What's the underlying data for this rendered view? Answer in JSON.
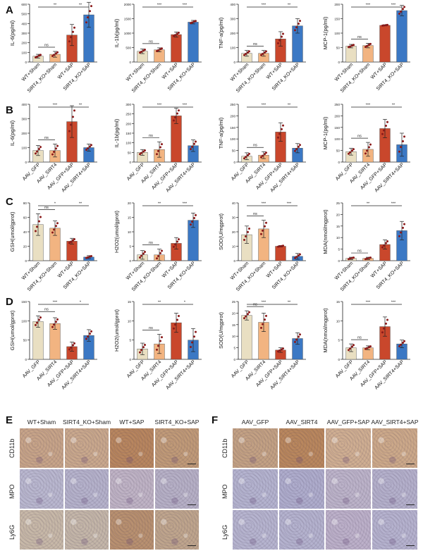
{
  "panels": {
    "A": "A",
    "B": "B",
    "C": "C",
    "D": "D",
    "E": "E",
    "F": "F"
  },
  "colors": {
    "group1": "#e9dfc2",
    "group2": "#f2b481",
    "group3": "#c9472c",
    "group4": "#3b78c4",
    "dot": "#8b1a1a"
  },
  "chart_data": [
    {
      "panel": "A",
      "type": "bar",
      "ylabel": "IL-6(pg/ml)",
      "yticks": [
        0,
        100,
        200,
        300,
        400,
        500,
        600
      ],
      "ylim": [
        0,
        600
      ],
      "categories": [
        "WT+Sham",
        "SIRT4_KO+Sham",
        "WT+SAP",
        "SIRT4_KO+SAP"
      ],
      "values": [
        60,
        80,
        280,
        490
      ],
      "errors": [
        20,
        30,
        110,
        130
      ],
      "sig": [
        {
          "from": 0,
          "to": 1,
          "label": "ns"
        },
        {
          "from": 0,
          "to": 2,
          "label": "**"
        },
        {
          "from": 2,
          "to": 3,
          "label": "**"
        }
      ]
    },
    {
      "panel": "A",
      "type": "bar",
      "ylabel": "IL-1b(pg/ml)",
      "yticks": [
        0,
        500,
        1000,
        1500,
        2000
      ],
      "ylim": [
        0,
        2000
      ],
      "categories": [
        "WT+Sham",
        "SIRT4_KO+Sham",
        "WT+SAP",
        "SIRT4_KO+SAP"
      ],
      "values": [
        370,
        420,
        950,
        1380
      ],
      "errors": [
        80,
        70,
        90,
        60
      ],
      "sig": [
        {
          "from": 0,
          "to": 1,
          "label": "ns"
        },
        {
          "from": 0,
          "to": 2,
          "label": "***"
        },
        {
          "from": 2,
          "to": 3,
          "label": "***"
        }
      ]
    },
    {
      "panel": "A",
      "type": "bar",
      "ylabel": "TNF-a(pg/ml)",
      "yticks": [
        0,
        100,
        200,
        300,
        400
      ],
      "ylim": [
        0,
        400
      ],
      "categories": [
        "WT+Sham",
        "SIRT4_KO+Sham",
        "WT+SAP",
        "SIRT4_KO+SAP"
      ],
      "values": [
        60,
        60,
        160,
        250
      ],
      "errors": [
        20,
        20,
        50,
        50
      ],
      "sig": [
        {
          "from": 0,
          "to": 1,
          "label": "ns"
        },
        {
          "from": 0,
          "to": 2,
          "label": "***"
        },
        {
          "from": 2,
          "to": 3,
          "label": "**"
        }
      ]
    },
    {
      "panel": "A",
      "type": "bar",
      "ylabel": "MCP-1(pg/ml)",
      "yticks": [
        0,
        50,
        100,
        150,
        200
      ],
      "ylim": [
        0,
        200
      ],
      "categories": [
        "WT+Sham",
        "SIRT4_KO+Sham",
        "WT+SAP",
        "SIRT4_KO+SAP"
      ],
      "values": [
        55,
        57,
        127,
        178
      ],
      "errors": [
        6,
        8,
        2,
        18
      ],
      "sig": [
        {
          "from": 0,
          "to": 1,
          "label": "ns"
        },
        {
          "from": 0,
          "to": 2,
          "label": "***"
        },
        {
          "from": 2,
          "to": 3,
          "label": "***"
        }
      ]
    },
    {
      "panel": "B",
      "type": "bar",
      "ylabel": "IL-6(pg/ml)",
      "yticks": [
        0,
        100,
        200,
        300,
        400
      ],
      "ylim": [
        0,
        400
      ],
      "categories": [
        "AAV_GFP",
        "AAV_SIRT4",
        "AAV_GFP+SAP",
        "AAV_SIRT4+SAP"
      ],
      "values": [
        80,
        80,
        280,
        100
      ],
      "errors": [
        35,
        45,
        110,
        25
      ],
      "sig": [
        {
          "from": 0,
          "to": 1,
          "label": "ns"
        },
        {
          "from": 0,
          "to": 2,
          "label": "***"
        },
        {
          "from": 2,
          "to": 3,
          "label": "**"
        }
      ]
    },
    {
      "panel": "B",
      "type": "bar",
      "ylabel": "IL-1b(pg/ml)",
      "yticks": [
        0,
        50,
        100,
        150,
        200,
        250,
        300
      ],
      "ylim": [
        0,
        300
      ],
      "categories": [
        "AAV_GFP",
        "AAV_SIRT4",
        "AAV_GFP+SAP",
        "AAV_SIRT4+SAP"
      ],
      "values": [
        50,
        65,
        240,
        85
      ],
      "errors": [
        15,
        40,
        40,
        30
      ],
      "sig": [
        {
          "from": 0,
          "to": 1,
          "label": "ns"
        },
        {
          "from": 0,
          "to": 2,
          "label": "***"
        },
        {
          "from": 2,
          "to": 3,
          "label": "***"
        }
      ]
    },
    {
      "panel": "B",
      "type": "bar",
      "ylabel": "TNF-a(pg/ml)",
      "yticks": [
        0,
        50,
        100,
        150,
        200,
        250
      ],
      "ylim": [
        0,
        250
      ],
      "categories": [
        "AAV_GFP",
        "AAV_SIRT4",
        "AAV_GFP+SAP",
        "AAV_SIRT4+SAP"
      ],
      "values": [
        25,
        30,
        130,
        60
      ],
      "errors": [
        15,
        15,
        40,
        20
      ],
      "sig": [
        {
          "from": 0,
          "to": 1,
          "label": "ns"
        },
        {
          "from": 0,
          "to": 2,
          "label": "***"
        },
        {
          "from": 2,
          "to": 3,
          "label": "**"
        }
      ]
    },
    {
      "panel": "B",
      "type": "bar",
      "ylabel": "MCP-1(pg/ml)",
      "yticks": [
        0,
        50,
        100,
        150,
        200,
        250
      ],
      "ylim": [
        0,
        250
      ],
      "categories": [
        "AAV_GFP",
        "AAV_SIRT4",
        "AAV_GFP+SAP",
        "AAV_SIRT4+SAP"
      ],
      "values": [
        45,
        55,
        145,
        75
      ],
      "errors": [
        15,
        30,
        40,
        50
      ],
      "sig": [
        {
          "from": 0,
          "to": 1,
          "label": "ns"
        },
        {
          "from": 0,
          "to": 2,
          "label": "***"
        },
        {
          "from": 2,
          "to": 3,
          "label": "**"
        }
      ]
    },
    {
      "panel": "C",
      "type": "bar",
      "ylabel": "GSH(umol/gprot)",
      "yticks": [
        0,
        20,
        40,
        60,
        80
      ],
      "ylim": [
        0,
        80
      ],
      "categories": [
        "WT+Sham",
        "SIRT4_KO+Sham",
        "WT+SAP",
        "SIRT4_KO+SAP"
      ],
      "values": [
        50,
        45,
        27,
        5
      ],
      "errors": [
        15,
        10,
        4,
        2
      ],
      "sig": [
        {
          "from": 0,
          "to": 1,
          "label": "ns"
        },
        {
          "from": 0,
          "to": 2,
          "label": "*"
        },
        {
          "from": 2,
          "to": 3,
          "label": "**"
        }
      ]
    },
    {
      "panel": "C",
      "type": "bar",
      "ylabel": "H2O2(umol/gprot)",
      "yticks": [
        0,
        5,
        10,
        15,
        20
      ],
      "ylim": [
        0,
        20
      ],
      "categories": [
        "WT+Sham",
        "SIRT4_KO+Sham",
        "WT+SAP",
        "SIRT4_KO+SAP"
      ],
      "values": [
        2,
        2,
        6,
        14
      ],
      "errors": [
        1.5,
        2,
        2,
        2.5
      ],
      "sig": [
        {
          "from": 0,
          "to": 1,
          "label": "ns"
        },
        {
          "from": 0,
          "to": 2,
          "label": "**"
        },
        {
          "from": 2,
          "to": 3,
          "label": "***"
        }
      ]
    },
    {
      "panel": "C",
      "type": "bar",
      "ylabel": "SOD(U/mgprot)",
      "yticks": [
        0,
        10,
        20,
        30,
        40
      ],
      "ylim": [
        0,
        40
      ],
      "categories": [
        "WT+Sham",
        "SIRT4_KO+Sham",
        "WT+SAP",
        "SIRT4_KO+SAP"
      ],
      "values": [
        18,
        22,
        10,
        3
      ],
      "errors": [
        6,
        6,
        0.5,
        2
      ],
      "sig": [
        {
          "from": 0,
          "to": 1,
          "label": "ns"
        },
        {
          "from": 0,
          "to": 2,
          "label": "***"
        },
        {
          "from": 2,
          "to": 3,
          "label": "***"
        }
      ]
    },
    {
      "panel": "C",
      "type": "bar",
      "ylabel": "MDA(nmol/mgprot)",
      "yticks": [
        0,
        5,
        10,
        15,
        20,
        25
      ],
      "ylim": [
        0,
        25
      ],
      "categories": [
        "WT+Sham",
        "SIRT4_KO+Sham",
        "WT+SAP",
        "SIRT4_KO+SAP"
      ],
      "values": [
        1,
        1,
        7,
        13
      ],
      "errors": [
        0.5,
        0.5,
        2,
        4
      ],
      "sig": [
        {
          "from": 0,
          "to": 1,
          "label": "ns"
        },
        {
          "from": 0,
          "to": 2,
          "label": "**"
        },
        {
          "from": 2,
          "to": 3,
          "label": "***"
        }
      ]
    },
    {
      "panel": "D",
      "type": "bar",
      "ylabel": "GSH(umol/gprot)",
      "yticks": [
        0,
        50,
        100,
        150
      ],
      "ylim": [
        0,
        150
      ],
      "categories": [
        "AAV_GFP",
        "AAV_SIRT4",
        "AAV_GFP+SAP",
        "AAV_SIRT4+SAP"
      ],
      "values": [
        98,
        93,
        33,
        62
      ],
      "errors": [
        15,
        15,
        12,
        15
      ],
      "sig": [
        {
          "from": 0,
          "to": 1,
          "label": "ns"
        },
        {
          "from": 0,
          "to": 2,
          "label": "***"
        },
        {
          "from": 2,
          "to": 3,
          "label": "*"
        }
      ]
    },
    {
      "panel": "D",
      "type": "bar",
      "ylabel": "H2O2(umol/gprot)",
      "yticks": [
        0,
        5,
        10,
        15
      ],
      "ylim": [
        0,
        15
      ],
      "categories": [
        "AAV_GFP",
        "AAV_SIRT4",
        "AAV_GFP+SAP",
        "AAV_SIRT4+SAP"
      ],
      "values": [
        2.7,
        4,
        9.5,
        5
      ],
      "errors": [
        1.5,
        2.5,
        2.5,
        3
      ],
      "sig": [
        {
          "from": 0,
          "to": 1,
          "label": "ns"
        },
        {
          "from": 0,
          "to": 2,
          "label": "**"
        },
        {
          "from": 2,
          "to": 3,
          "label": "*"
        }
      ]
    },
    {
      "panel": "D",
      "type": "bar",
      "ylabel": "SOD(U/mgprot)",
      "yticks": [
        0,
        5,
        10,
        15,
        20,
        25
      ],
      "ylim": [
        0,
        25
      ],
      "categories": [
        "AAV_GFP",
        "AAV_SIRT4",
        "AAV_GFP+SAP",
        "AAV_SIRT4+SAP"
      ],
      "values": [
        19,
        16,
        4,
        9
      ],
      "errors": [
        2,
        4,
        1,
        2.5
      ],
      "sig": [
        {
          "from": 0,
          "to": 1,
          "label": "ns"
        },
        {
          "from": 0,
          "to": 2,
          "label": "***"
        },
        {
          "from": 2,
          "to": 3,
          "label": "**"
        }
      ]
    },
    {
      "panel": "D",
      "type": "bar",
      "ylabel": "MDA(nmol/mgprot)",
      "yticks": [
        0,
        5,
        10,
        15
      ],
      "ylim": [
        0,
        15
      ],
      "categories": [
        "AAV_GFP",
        "AAV_SIRT4",
        "AAV_GFP+SAP",
        "AAV_SIRT4+SAP"
      ],
      "values": [
        3,
        3,
        8.5,
        4
      ],
      "errors": [
        1,
        0.5,
        2.5,
        1
      ],
      "sig": [
        {
          "from": 0,
          "to": 1,
          "label": "ns"
        },
        {
          "from": 0,
          "to": 2,
          "label": "***"
        },
        {
          "from": 2,
          "to": 3,
          "label": "***"
        }
      ]
    }
  ],
  "histology": {
    "E": {
      "columns": [
        "WT+Sham",
        "SIRT4_KO+Sham",
        "WT+SAP",
        "SIRT4_KO+SAP"
      ],
      "rows": [
        "CD11b",
        "MPO",
        "Ly6G"
      ]
    },
    "F": {
      "columns": [
        "AAV_GFP",
        "AAV_SIRT4",
        "AAV_GFP+SAP",
        "AAV_SIRT4+SAP"
      ],
      "rows": [
        "CD11b",
        "MPO",
        "Ly6G"
      ]
    }
  },
  "tissue_tones": {
    "E": [
      [
        "#c7a489",
        "#c9a88d",
        "#b8865f",
        "#c09a78"
      ],
      [
        "#b9b7cf",
        "#b5b2cb",
        "#bfb3c5",
        "#b6b0c6"
      ],
      [
        "#c7b8a8",
        "#c4b6a9",
        "#b89070",
        "#bfa58d"
      ]
    ],
    "F": [
      [
        "#c3a184",
        "#b9875e",
        "#cfae92",
        "#cca98a"
      ],
      [
        "#b4b3cf",
        "#aeaccc",
        "#bcb3c9",
        "#b4b0cb"
      ],
      [
        "#b6b4cf",
        "#b4b2ce",
        "#bcb0c9",
        "#b5b2ce"
      ]
    ]
  }
}
